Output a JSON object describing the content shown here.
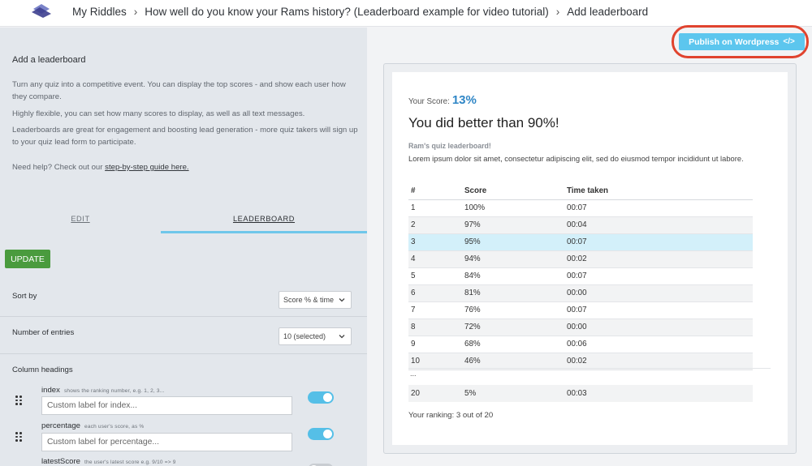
{
  "breadcrumb": {
    "items": [
      "My Riddles",
      "How well do you know your Rams history? (Leaderboard example for video tutorial)",
      "Add leaderboard"
    ],
    "separator": "›"
  },
  "intro": {
    "title": "Add a leaderboard",
    "p1": "Turn any quiz into a competitive event. You can display the top scores - and show each user how they compare.",
    "p2": "Highly flexible, you can set how many scores to display, as well as all text messages.",
    "p3": "Leaderboards are great for engagement and boosting lead generation - more quiz takers will sign up to your quiz lead form to participate.",
    "help_prefix": "Need help? Check out our ",
    "help_link": "step-by-step guide here."
  },
  "tabs": {
    "edit": "EDIT",
    "leaderboard": "LEADERBOARD",
    "active": "leaderboard"
  },
  "update_button": "UPDATE",
  "sort_by": {
    "label": "Sort by",
    "value": "Score % & time"
  },
  "entries": {
    "label": "Number of entries",
    "value": "10 (selected)"
  },
  "column_headings": {
    "label": "Column headings",
    "columns": [
      {
        "name": "index",
        "hint": "shows the ranking number, e.g. 1, 2, 3...",
        "placeholder": "Custom label for index...",
        "enabled": true
      },
      {
        "name": "percentage",
        "hint": "each user's score, as %",
        "placeholder": "Custom label for percentage...",
        "enabled": true
      },
      {
        "name": "latestScore",
        "hint": "the user's latest score e.g. 9/10 => 9",
        "enabled": false
      }
    ]
  },
  "publish_button": {
    "label": "Publish on Wordpress",
    "icon": "code-icon",
    "color": "#5cc6ee",
    "highlight_color": "#e0432e"
  },
  "preview": {
    "score_label": "Your Score:",
    "score_value": "13%",
    "headline": "You did better than 90%!",
    "leaderboard_title": "Ram's quiz leaderboard!",
    "leaderboard_desc": "Lorem ipsum dolor sit amet, consectetur adipiscing elit, sed do eiusmod tempor incididunt ut labore.",
    "table": {
      "headers": [
        "#",
        "Score",
        "Time taken"
      ],
      "rows": [
        [
          "1",
          "100%",
          "00:07"
        ],
        [
          "2",
          "97%",
          "00:04"
        ],
        [
          "3",
          "95%",
          "00:07"
        ],
        [
          "4",
          "94%",
          "00:02"
        ],
        [
          "5",
          "84%",
          "00:07"
        ],
        [
          "6",
          "81%",
          "00:00"
        ],
        [
          "7",
          "76%",
          "00:07"
        ],
        [
          "8",
          "72%",
          "00:00"
        ],
        [
          "9",
          "68%",
          "00:06"
        ],
        [
          "10",
          "46%",
          "00:02"
        ]
      ],
      "highlight_row": 2,
      "ellipsis": "...",
      "last_row": [
        "20",
        "5%",
        "00:03"
      ]
    },
    "ranking": "Your ranking: 3 out of 20"
  }
}
